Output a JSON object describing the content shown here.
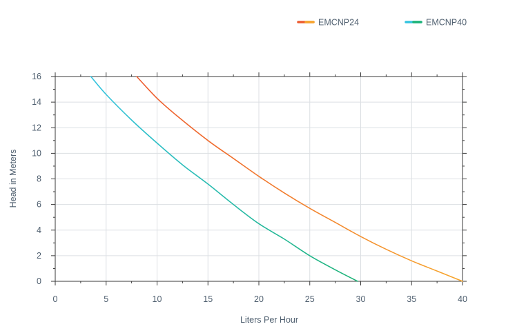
{
  "chart_data": {
    "type": "line",
    "xlabel": "Liters Per Hour",
    "ylabel": "Head in Meters",
    "xlim": [
      0,
      40
    ],
    "ylim": [
      0,
      16
    ],
    "xticks": [
      0,
      5,
      10,
      15,
      20,
      25,
      30,
      35,
      40
    ],
    "yticks": [
      0,
      2,
      4,
      6,
      8,
      10,
      12,
      14,
      16
    ],
    "grid": true,
    "legend_position": "top-right",
    "series": [
      {
        "name": "EMCNP24",
        "color_start": "#ed5b2f",
        "color_end": "#f7a72e",
        "x": [
          8.0,
          10.0,
          12.0,
          15.0,
          17.5,
          20.0,
          22.5,
          25.0,
          27.5,
          30.0,
          32.5,
          35.0,
          37.5,
          40.0
        ],
        "y": [
          16.0,
          14.3,
          12.9,
          11.0,
          9.6,
          8.2,
          6.9,
          5.7,
          4.6,
          3.5,
          2.5,
          1.6,
          0.8,
          0.0
        ]
      },
      {
        "name": "EMCNP40",
        "color_start": "#33c3df",
        "color_end": "#1eb377",
        "x": [
          3.5,
          5.0,
          7.5,
          10.0,
          12.5,
          15.0,
          17.5,
          20.0,
          22.5,
          25.0,
          27.5,
          29.7
        ],
        "y": [
          16.0,
          14.6,
          12.6,
          10.8,
          9.1,
          7.6,
          6.0,
          4.5,
          3.3,
          2.0,
          0.9,
          0.0
        ]
      }
    ]
  }
}
